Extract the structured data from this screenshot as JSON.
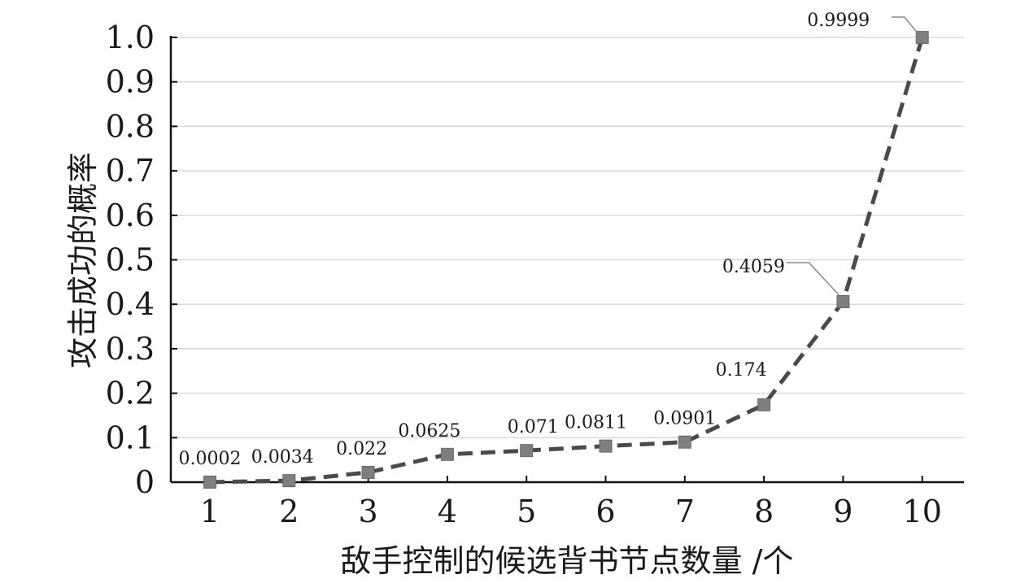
{
  "chart_data": {
    "type": "line",
    "xlabel": "敌手控制的候选背书节点数量 /个",
    "ylabel": "攻击成功的概率",
    "categories": [
      "1",
      "2",
      "3",
      "4",
      "5",
      "6",
      "7",
      "8",
      "9",
      "10"
    ],
    "x": [
      1,
      2,
      3,
      4,
      5,
      6,
      7,
      8,
      9,
      10
    ],
    "series": [
      {
        "values": [
          0.0002,
          0.0034,
          0.022,
          0.0625,
          0.071,
          0.0811,
          0.0901,
          0.174,
          0.4059,
          0.9999
        ],
        "data_labels": [
          "0.0002",
          "0.0034",
          "0.022",
          "0.0625",
          "0.071",
          "0.0811",
          "0.0901",
          "0.174",
          "0.4059",
          "0.9999"
        ],
        "line_style": "dashed",
        "marker": "square",
        "color": "#4a4a4a",
        "marker_color": "#7f7f7f"
      }
    ],
    "ylim": [
      0,
      1.0
    ],
    "yticks": [
      0,
      0.1,
      0.2,
      0.3,
      0.4,
      0.5,
      0.6,
      0.7,
      0.8,
      0.9,
      1.0
    ],
    "ytick_labels": [
      "0",
      "0.1",
      "0.2",
      "0.3",
      "0.4",
      "0.5",
      "0.6",
      "0.7",
      "0.8",
      "0.9",
      "1.0"
    ],
    "grid": true,
    "legend": false
  }
}
